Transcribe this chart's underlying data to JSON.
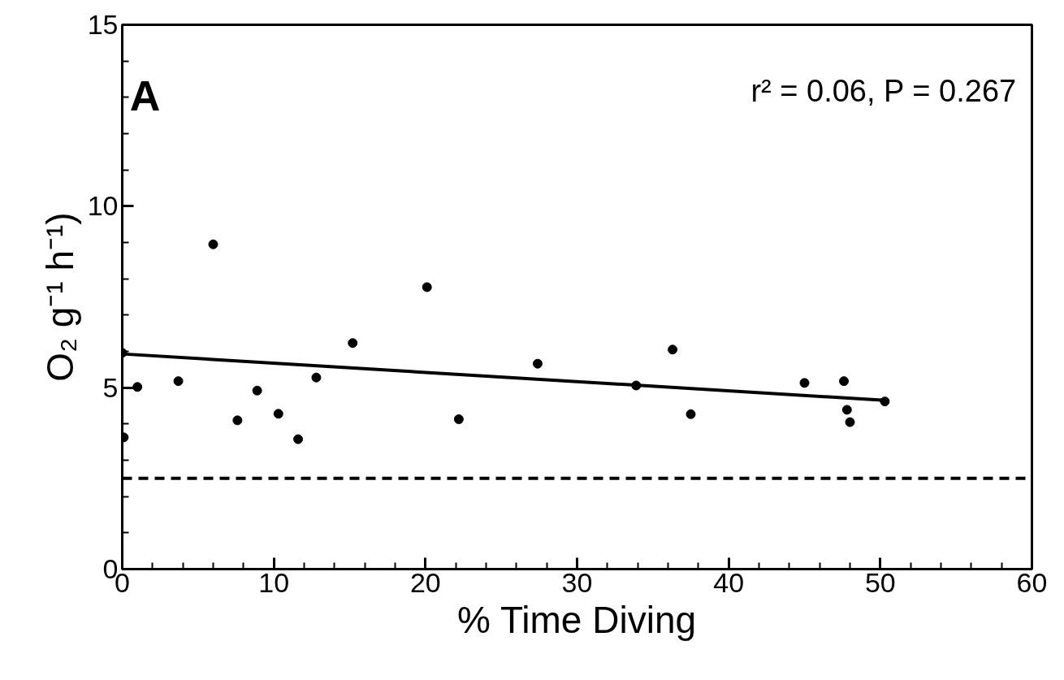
{
  "chart_data": {
    "type": "scatter",
    "xlabel": "% Time Diving",
    "ylabel": "O₂ g⁻¹ h⁻¹)",
    "xlim": [
      0,
      60
    ],
    "ylim": [
      0,
      15
    ],
    "xticks": [
      0,
      10,
      20,
      30,
      40,
      50,
      60
    ],
    "yticks": [
      0,
      5,
      10,
      15
    ],
    "marker": "circle",
    "grid": false,
    "annotations": [
      "A",
      "r² = 0.06, P = 0.267"
    ],
    "ref_lines": [
      {
        "axis": "y",
        "value": 2.5,
        "line_style": "dashed",
        "color": "#000000"
      }
    ],
    "series": [
      {
        "color": "#000000",
        "x": [
          0.1,
          0,
          1.0,
          3.7,
          6.0,
          7.6,
          8.9,
          10.3,
          11.6,
          12.8,
          15.2,
          20.1,
          22.2,
          27.4,
          33.9,
          36.3,
          37.5,
          45.0,
          47.6,
          47.8,
          48.0,
          50.3
        ],
        "values": [
          3.63,
          5.96,
          5.02,
          5.18,
          8.95,
          4.1,
          4.92,
          4.28,
          3.58,
          5.28,
          6.23,
          7.77,
          4.13,
          5.66,
          5.06,
          6.05,
          4.27,
          5.13,
          5.18,
          4.39,
          4.05,
          4.62
        ]
      },
      {
        "type": "line",
        "color": "#000000",
        "line_style": "solid",
        "marker": "none",
        "x": [
          0,
          50.3
        ],
        "values": [
          5.93,
          4.65
        ]
      }
    ]
  }
}
